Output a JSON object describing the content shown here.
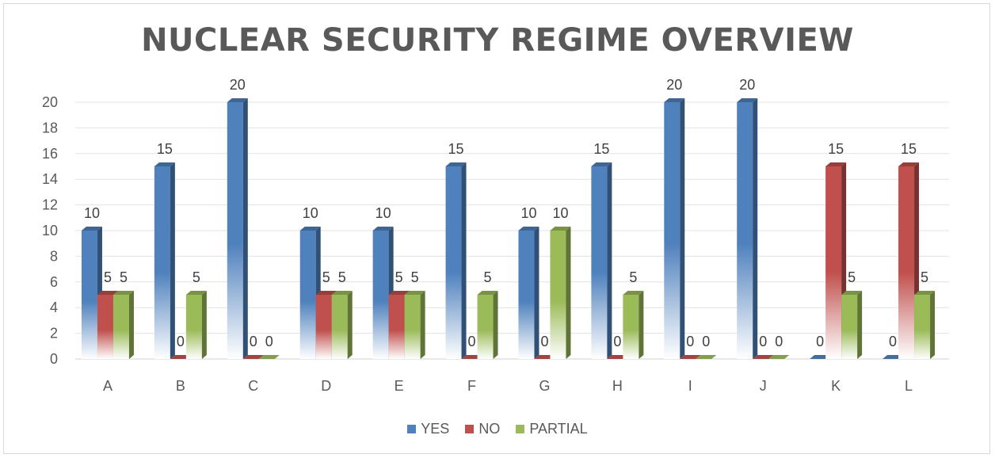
{
  "chart_data": {
    "type": "bar",
    "title": "NUCLEAR SECURITY REGIME OVERVIEW",
    "xlabel": "",
    "ylabel": "",
    "ylim": [
      0,
      20
    ],
    "yticks": [
      0,
      2,
      4,
      6,
      8,
      10,
      12,
      14,
      16,
      18,
      20
    ],
    "grid": true,
    "legend_position": "bottom",
    "categories": [
      "A",
      "B",
      "C",
      "D",
      "E",
      "F",
      "G",
      "H",
      "I",
      "J",
      "K",
      "L"
    ],
    "series": [
      {
        "name": "YES",
        "color": "#4f81bd",
        "values": [
          10,
          15,
          20,
          10,
          10,
          15,
          10,
          15,
          20,
          20,
          0,
          0
        ]
      },
      {
        "name": "NO",
        "color": "#c0504d",
        "values": [
          5,
          0,
          0,
          5,
          5,
          0,
          0,
          0,
          0,
          0,
          15,
          15
        ]
      },
      {
        "name": "PARTIAL",
        "color": "#9bbb59",
        "values": [
          5,
          5,
          0,
          5,
          5,
          5,
          10,
          5,
          0,
          0,
          5,
          5
        ]
      }
    ]
  }
}
